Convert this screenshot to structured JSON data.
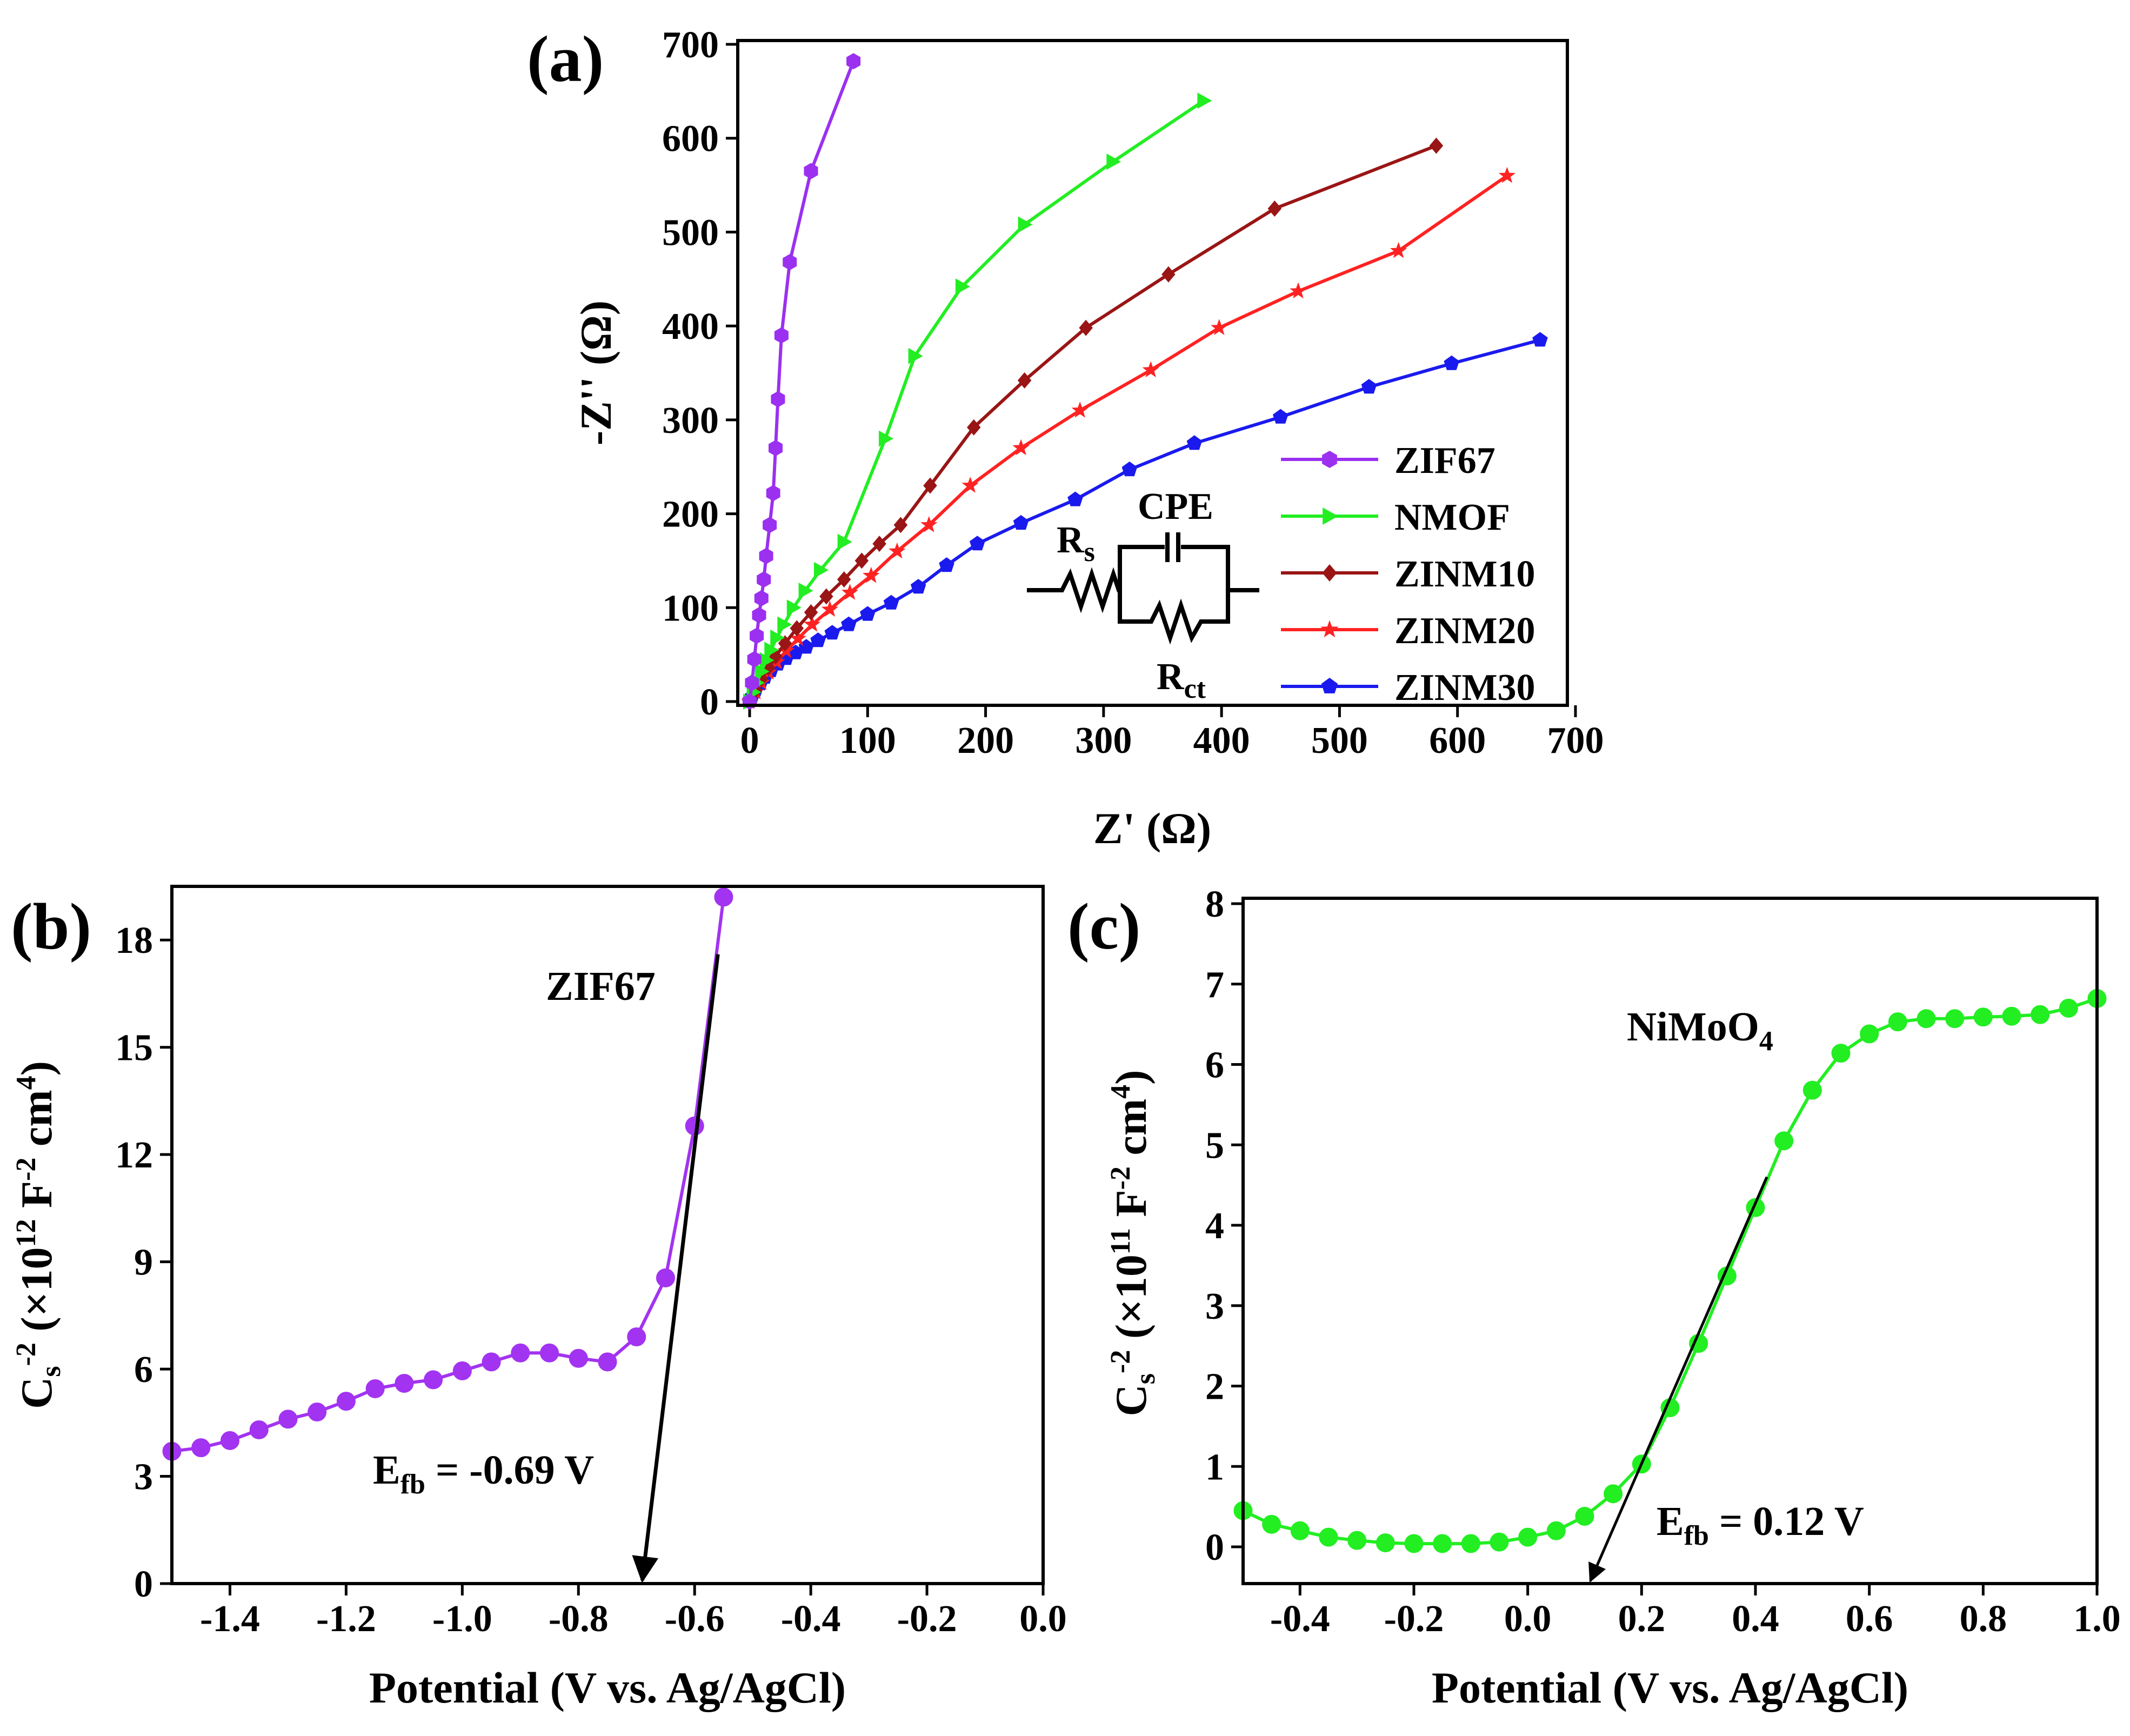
{
  "chart_data": [
    {
      "id": "a",
      "panel_label": "(a)",
      "type": "line",
      "xlabel_main": "Z' ",
      "xlabel_unit": "(Ω)",
      "ylabel_main": "-Z'' ",
      "ylabel_unit": "(Ω)",
      "xlim": [
        0,
        700
      ],
      "ylim": [
        0,
        700
      ],
      "xticks": [
        0,
        100,
        200,
        300,
        400,
        500,
        600,
        700
      ],
      "yticks": [
        0,
        100,
        200,
        300,
        400,
        500,
        600,
        700
      ],
      "legend_position": "bottom-right",
      "series": [
        {
          "name": "ZIF67",
          "color": "#9b30f0",
          "marker": "hexagon",
          "x": [
            0,
            2,
            4,
            6,
            8,
            10,
            12,
            14,
            17,
            20,
            22,
            24,
            27,
            34,
            52,
            88
          ],
          "y": [
            0,
            20,
            45,
            70,
            92,
            110,
            130,
            155,
            188,
            222,
            270,
            322,
            390,
            468,
            565,
            682
          ]
        },
        {
          "name": "NMOF",
          "color": "#22ee22",
          "marker": "triangle-right",
          "x": [
            0,
            3,
            6,
            10,
            14,
            18,
            23,
            29,
            37,
            47,
            60,
            80,
            115,
            140,
            180,
            233,
            308,
            385
          ],
          "y": [
            0,
            10,
            20,
            32,
            44,
            55,
            68,
            82,
            100,
            118,
            140,
            170,
            280,
            368,
            442,
            508,
            575,
            640
          ]
        },
        {
          "name": "ZINM10",
          "color": "#9a1515",
          "marker": "diamond",
          "x": [
            0,
            5,
            10,
            16,
            22,
            30,
            40,
            52,
            65,
            80,
            95,
            110,
            128,
            153,
            190,
            233,
            285,
            355,
            445,
            582
          ],
          "y": [
            0,
            12,
            24,
            36,
            48,
            62,
            78,
            95,
            112,
            130,
            150,
            168,
            188,
            230,
            292,
            342,
            398,
            455,
            525,
            592
          ]
        },
        {
          "name": "ZINM20",
          "color": "#ff2222",
          "marker": "star",
          "x": [
            0,
            5,
            10,
            16,
            23,
            31,
            41,
            53,
            68,
            85,
            103,
            125,
            152,
            187,
            230,
            280,
            340,
            398,
            465,
            550,
            642
          ],
          "y": [
            0,
            10,
            20,
            31,
            42,
            54,
            67,
            82,
            98,
            116,
            134,
            160,
            188,
            230,
            270,
            310,
            353,
            398,
            437,
            480,
            560
          ]
        },
        {
          "name": "ZINM30",
          "color": "#1a1aee",
          "marker": "pentagon",
          "x": [
            0,
            2,
            5,
            9,
            13,
            18,
            24,
            31,
            39,
            48,
            58,
            70,
            84,
            100,
            120,
            143,
            167,
            193,
            230,
            276,
            322,
            377,
            450,
            525,
            595,
            670
          ],
          "y": [
            0,
            5,
            12,
            19,
            26,
            33,
            40,
            46,
            52,
            58,
            65,
            73,
            82,
            93,
            105,
            122,
            145,
            168,
            190,
            215,
            247,
            275,
            303,
            335,
            360,
            385
          ]
        }
      ],
      "inset": {
        "label_rs": "R",
        "label_rs_sub": "s",
        "label_cpe": "CPE",
        "label_rct": "R",
        "label_rct_sub": "ct"
      }
    },
    {
      "id": "b",
      "panel_label": "(b)",
      "type": "line",
      "xlabel": "Potential (V vs. Ag/AgCl)",
      "ylabel_main": "C",
      "ylabel_sub": "s",
      "ylabel_sup": "-2",
      "ylabel_rest": " (×10",
      "ylabel_exp": "12",
      "ylabel_tail": " F",
      "ylabel_tail_sup": "-2",
      "ylabel_tail2": " cm",
      "ylabel_tail2_sup": "4",
      "ylabel_close": ")",
      "xlim": [
        -1.5,
        0.0
      ],
      "ylim": [
        0,
        19.5
      ],
      "xticks": [
        -1.4,
        -1.2,
        -1.0,
        -0.8,
        -0.6,
        -0.4,
        -0.2,
        0.0
      ],
      "xtick_labels": [
        "-1.4",
        "-1.2",
        "-1.0",
        "-0.8",
        "-0.6",
        "-0.4",
        "-0.2",
        "0.0"
      ],
      "yticks": [
        0,
        3,
        6,
        9,
        12,
        15,
        18
      ],
      "series": [
        {
          "name": "ZIF67",
          "color": "#a233f0",
          "marker": "circle",
          "x": [
            -1.5,
            -1.45,
            -1.4,
            -1.35,
            -1.3,
            -1.25,
            -1.2,
            -1.15,
            -1.1,
            -1.05,
            -1.0,
            -0.95,
            -0.9,
            -0.85,
            -0.8,
            -0.75,
            -0.7,
            -0.65,
            -0.6,
            -0.55
          ],
          "y": [
            3.7,
            3.8,
            4.0,
            4.3,
            4.6,
            4.8,
            5.1,
            5.45,
            5.6,
            5.7,
            5.95,
            6.2,
            6.45,
            6.45,
            6.3,
            6.2,
            6.9,
            8.55,
            12.8,
            19.2
          ]
        }
      ],
      "series_label": "ZIF67",
      "fit_line": {
        "x": [
          -0.56,
          -0.69
        ],
        "y": [
          17.6,
          0
        ]
      },
      "annotation_main": "E",
      "annotation_sub": "fb",
      "annotation_value": " = -0.69 V"
    },
    {
      "id": "c",
      "panel_label": "(c)",
      "type": "line",
      "xlabel": "Potential (V vs. Ag/AgCl)",
      "ylabel_main": "C",
      "ylabel_sub": "s",
      "ylabel_sup": "-2",
      "ylabel_rest": " (×10",
      "ylabel_exp": "11",
      "ylabel_tail": " F",
      "ylabel_tail_sup": "-2",
      "ylabel_tail2": " cm",
      "ylabel_tail2_sup": "4",
      "ylabel_close": ")",
      "xlim": [
        -0.5,
        1.0
      ],
      "ylim": [
        -0.5,
        8
      ],
      "xticks": [
        -0.4,
        -0.2,
        0.0,
        0.2,
        0.4,
        0.6,
        0.8,
        1.0
      ],
      "xtick_labels": [
        "-0.4",
        "-0.2",
        "0.0",
        "0.2",
        "0.4",
        "0.6",
        "0.8",
        "1.0"
      ],
      "yticks": [
        0,
        1,
        2,
        3,
        4,
        5,
        6,
        7,
        8
      ],
      "series": [
        {
          "name": "NiMoO4",
          "color": "#22ee22",
          "marker": "circle",
          "x": [
            -0.5,
            -0.45,
            -0.4,
            -0.35,
            -0.3,
            -0.25,
            -0.2,
            -0.15,
            -0.1,
            -0.05,
            0.0,
            0.05,
            0.1,
            0.15,
            0.2,
            0.25,
            0.3,
            0.35,
            0.4,
            0.45,
            0.5,
            0.55,
            0.6,
            0.65,
            0.7,
            0.75,
            0.8,
            0.85,
            0.9,
            0.95,
            1.0
          ],
          "y": [
            0.45,
            0.28,
            0.2,
            0.12,
            0.08,
            0.05,
            0.04,
            0.04,
            0.04,
            0.06,
            0.12,
            0.2,
            0.38,
            0.66,
            1.03,
            1.73,
            2.53,
            3.37,
            4.22,
            5.05,
            5.68,
            6.14,
            6.38,
            6.53,
            6.57,
            6.57,
            6.59,
            6.6,
            6.62,
            6.7,
            6.82
          ]
        }
      ],
      "series_label_main": "NiMoO",
      "series_label_sub": "4",
      "fit_line": {
        "x": [
          0.42,
          0.11
        ],
        "y": [
          4.6,
          -0.5
        ]
      },
      "annotation_main": "E",
      "annotation_sub": "fb",
      "annotation_value": " = 0.12 V"
    }
  ]
}
